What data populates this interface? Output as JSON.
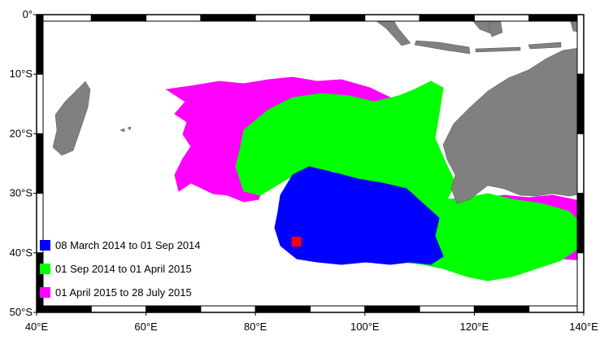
{
  "map": {
    "xlim": [
      40,
      140
    ],
    "ylim": [
      -50,
      0
    ],
    "xticks": [
      {
        "value": 40,
        "label": "40°E"
      },
      {
        "value": 60,
        "label": "60°E"
      },
      {
        "value": 80,
        "label": "80°E"
      },
      {
        "value": 100,
        "label": "100°E"
      },
      {
        "value": 120,
        "label": "120°E"
      },
      {
        "value": 140,
        "label": "140°E"
      }
    ],
    "yticks": [
      {
        "value": 0,
        "label": "0°"
      },
      {
        "value": -10,
        "label": "10°S"
      },
      {
        "value": -20,
        "label": "20°S"
      },
      {
        "value": -30,
        "label": "30°S"
      },
      {
        "value": -40,
        "label": "40°S"
      },
      {
        "value": -50,
        "label": "50°S"
      }
    ],
    "legend": [
      {
        "label": "08 March 2014 to 01 Sep 2014",
        "color": "#0000ff"
      },
      {
        "label": "01 Sep 2014 to 01 April 2015",
        "color": "#00ff00"
      },
      {
        "label": "01 April 2015 to 28 July 2015",
        "color": "#ff00ff"
      }
    ],
    "marker": {
      "lon": 87.5,
      "lat": -38.1,
      "color": "#ff0000"
    }
  }
}
